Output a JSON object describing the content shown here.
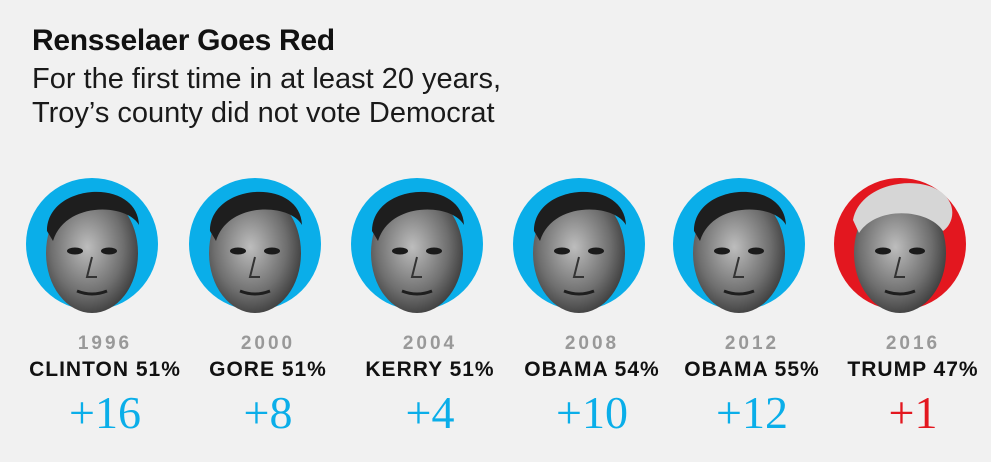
{
  "header": {
    "title": "Rensselaer Goes Red",
    "subtitle_lines": [
      "For the first time in at least 20 years,",
      "Troy’s county did not vote Democrat"
    ]
  },
  "colors": {
    "democrat": "#0aaee9",
    "republican": "#e3171f",
    "year_gray": "#999999",
    "background": "#f1f1f1"
  },
  "chart_data": {
    "type": "table",
    "columns": [
      "year",
      "winner",
      "winner_share",
      "margin"
    ],
    "rows": [
      {
        "year": "1996",
        "winner": "CLINTON",
        "share": "51%",
        "label": "CLINTON 51%",
        "margin_label": "+16",
        "margin": 16,
        "party": "democrat",
        "portrait": "clinton-photo"
      },
      {
        "year": "2000",
        "winner": "GORE",
        "share": "51%",
        "label": "GORE 51%",
        "margin_label": "+8",
        "margin": 8,
        "party": "democrat",
        "portrait": "gore-photo"
      },
      {
        "year": "2004",
        "winner": "KERRY",
        "share": "51%",
        "label": "KERRY 51%",
        "margin_label": "+4",
        "margin": 4,
        "party": "democrat",
        "portrait": "kerry-photo"
      },
      {
        "year": "2008",
        "winner": "OBAMA",
        "share": "54%",
        "label": "OBAMA 54%",
        "margin_label": "+10",
        "margin": 10,
        "party": "democrat",
        "portrait": "obama-photo"
      },
      {
        "year": "2012",
        "winner": "OBAMA",
        "share": "55%",
        "label": "OBAMA 55%",
        "margin_label": "+12",
        "margin": 12,
        "party": "democrat",
        "portrait": "obama-photo"
      },
      {
        "year": "2016",
        "winner": "TRUMP",
        "share": "47%",
        "label": "TRUMP 47%",
        "margin_label": "+1",
        "margin": 1,
        "party": "republican",
        "portrait": "trump-photo"
      }
    ]
  }
}
